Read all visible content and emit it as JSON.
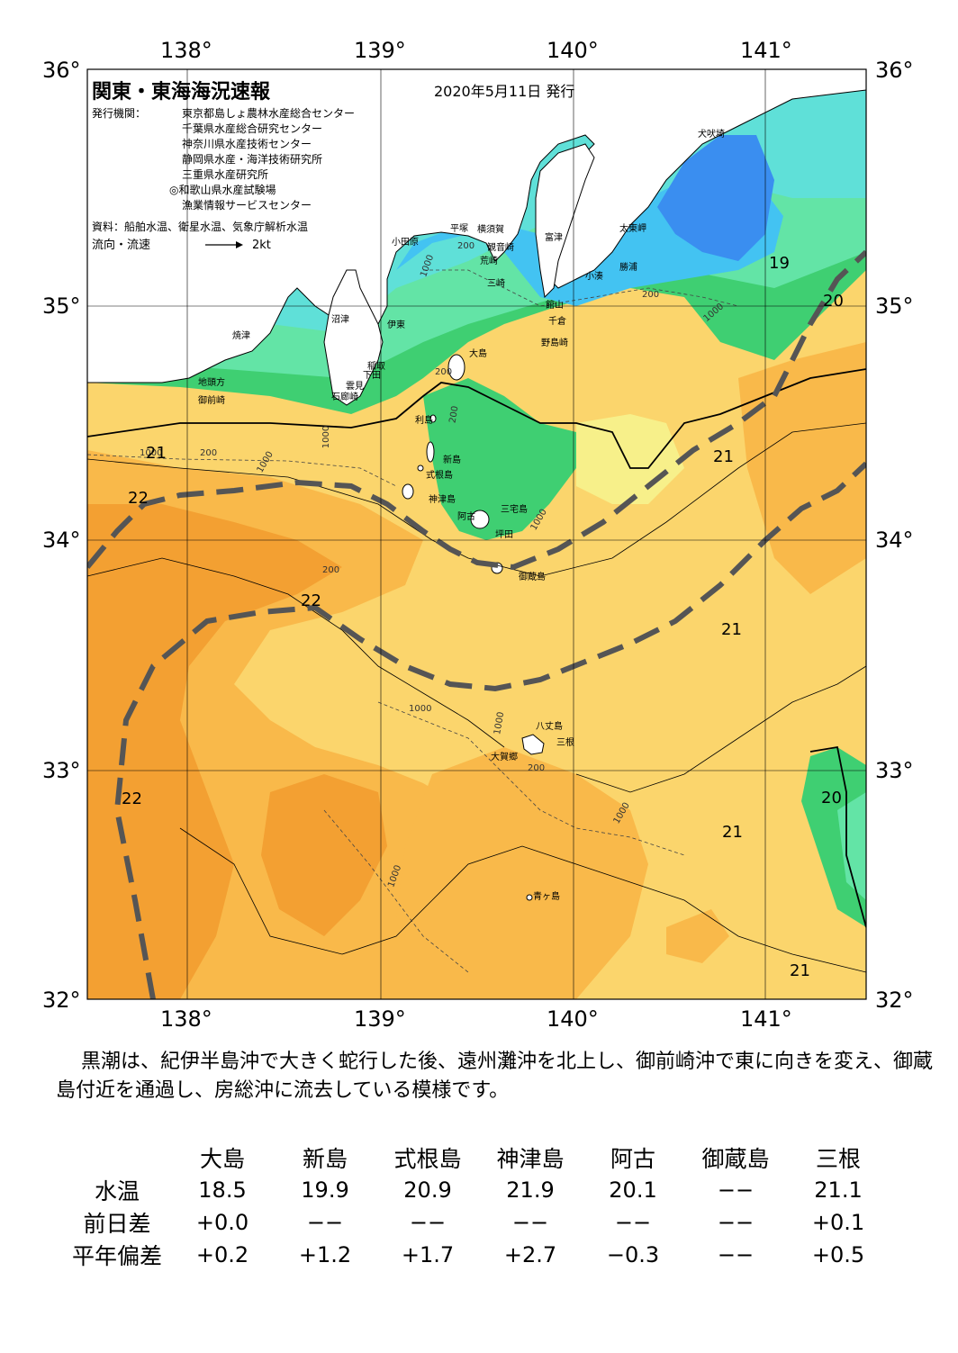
{
  "title": "関東・東海海況速報",
  "issue_date": "2020年5月11日 発行",
  "publisher_label": "発行機関：",
  "publishers": [
    "東京都島しょ農林水産総合センター",
    "千葉県水産総合研究センター",
    "神奈川県水産技術センター",
    "静岡県水産・海洋技術研究所",
    "三重県水産研究所",
    "◎和歌山県水産試験場",
    "漁業情報サービスセンター"
  ],
  "source_label": "資料：船舶水温、衛星水温、気象庁解析水温",
  "legend_label": "流向・流速",
  "legend_unit": "2kt",
  "lon_labels": [
    "138°",
    "139°",
    "140°",
    "141°"
  ],
  "lat_labels": [
    "36°",
    "35°",
    "34°",
    "33°",
    "32°"
  ],
  "places": [
    "犬吠埼",
    "太東岬",
    "勝浦",
    "小湊",
    "富津",
    "横須賀",
    "観音崎",
    "荒崎",
    "三崎",
    "館山",
    "千倉",
    "野島崎",
    "平塚",
    "小田原",
    "沼津",
    "伊東",
    "焼津",
    "稲取",
    "下田",
    "雲見",
    "石廊崎",
    "地頭方",
    "御前崎",
    "大島",
    "利島",
    "新島",
    "式根島",
    "神津島",
    "三宅島",
    "阿古",
    "坪田",
    "御蔵島",
    "八丈島",
    "三根",
    "大賀郷",
    "青ヶ島"
  ],
  "isotherm_labels": [
    "19",
    "20",
    "21",
    "21",
    "21",
    "21",
    "21",
    "22",
    "22",
    "22",
    "20"
  ],
  "depth_labels": [
    "200",
    "1000",
    "200",
    "1000",
    "200",
    "1000",
    "1000",
    "1000",
    "200",
    "200",
    "1000",
    "1000",
    "1000",
    "1000",
    "200",
    "1000",
    "200"
  ],
  "description": "黒潮は、紀伊半島沖で大きく蛇行した後、遠州灘沖を北上し、御前崎沖で東に向きを変え、御蔵島付近を通過し、房総沖に流去している模様です。",
  "table": {
    "columns": [
      "大島",
      "新島",
      "式根島",
      "神津島",
      "阿古",
      "御蔵島",
      "三根"
    ],
    "rows": [
      {
        "label": "水温",
        "values": [
          "18.5",
          "19.9",
          "20.9",
          "21.9",
          "20.1",
          "−−",
          "21.1"
        ]
      },
      {
        "label": "前日差",
        "values": [
          "+0.0",
          "−−",
          "−−",
          "−−",
          "−−",
          "−−",
          "+0.1"
        ]
      },
      {
        "label": "平年偏差",
        "values": [
          "+0.2",
          "+1.2",
          "+1.7",
          "+2.7",
          "−0.3",
          "−−",
          "+0.5"
        ]
      }
    ]
  },
  "colors": {
    "sst_le18": "#3a8ef0",
    "sst_19": "#43c3f2",
    "sst_19b": "#5fe0d8",
    "sst_20": "#63e4a6",
    "sst_20b": "#3fcf72",
    "sst_21": "#f7f08a",
    "sst_21b": "#fbd56c",
    "sst_22": "#f9b94a",
    "sst_23": "#f3a032",
    "kuroshio": "#555555",
    "land": "#ffffff"
  }
}
